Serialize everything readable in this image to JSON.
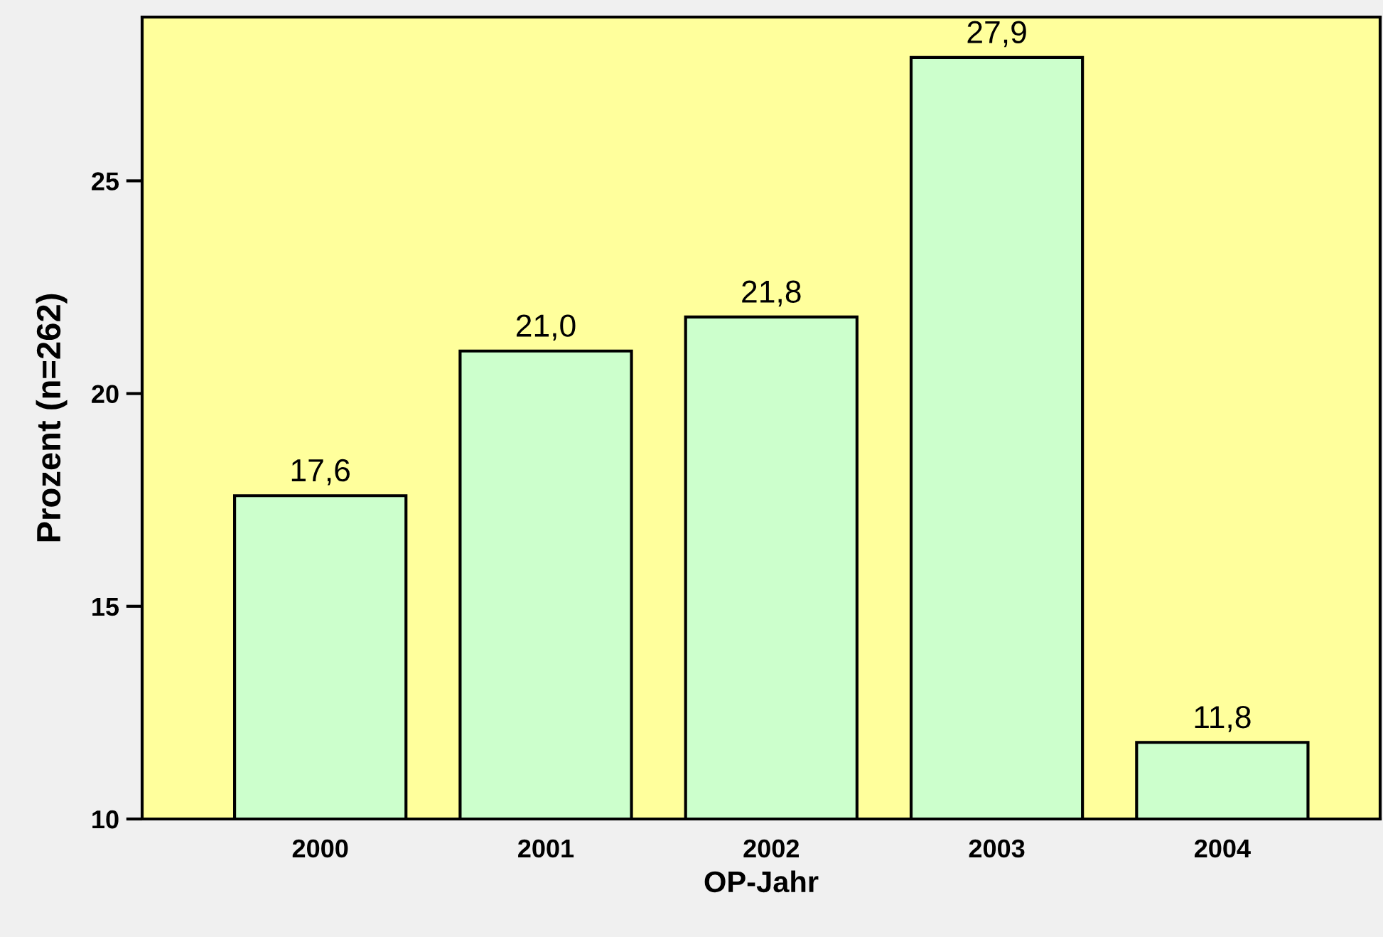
{
  "chart_data": {
    "type": "bar",
    "xlabel": "OP-Jahr",
    "ylabel": "Prozent (n=262)",
    "categories": [
      "2000",
      "2001",
      "2002",
      "2003",
      "2004"
    ],
    "values": [
      17.6,
      21.0,
      21.8,
      27.9,
      11.8
    ],
    "value_labels": [
      "17,6",
      "21,0",
      "21,8",
      "27,9",
      "11,8"
    ],
    "color": "#ccffcc",
    "ylim": [
      10,
      28.85
    ],
    "yticks": [
      10,
      15,
      20,
      25
    ],
    "grid": false,
    "legend": false
  }
}
